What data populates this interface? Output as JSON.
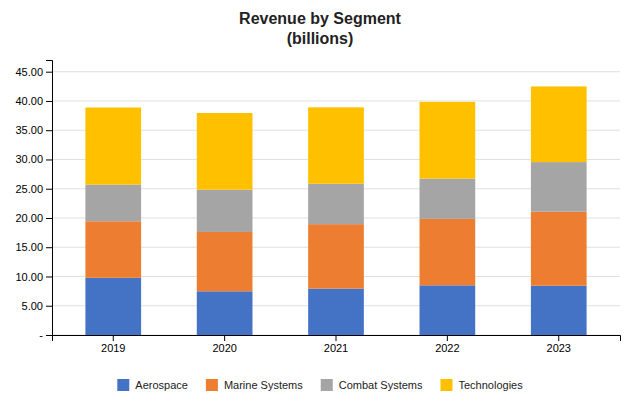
{
  "chart_data": {
    "type": "bar",
    "stacked": true,
    "title": "Revenue by Segment\n(billions)",
    "categories": [
      "2019",
      "2020",
      "2021",
      "2022",
      "2023"
    ],
    "series": [
      {
        "name": "Aerospace",
        "color": "#4472c4",
        "values": [
          9.77,
          7.47,
          7.93,
          8.49,
          8.42
        ]
      },
      {
        "name": "Marine Systems",
        "color": "#ed7d31",
        "values": [
          9.67,
          10.14,
          11.01,
          11.36,
          12.65
        ]
      },
      {
        "name": "Combat Systems",
        "color": "#a5a5a5",
        "values": [
          6.27,
          7.22,
          6.91,
          6.88,
          8.48
        ]
      },
      {
        "name": "Technologies",
        "color": "#ffc000",
        "values": [
          13.17,
          13.11,
          13.06,
          13.12,
          12.93
        ]
      }
    ],
    "ylim": [
      0,
      47
    ],
    "yticks": [
      {
        "value": 0,
        "label": "-"
      },
      {
        "value": 5,
        "label": "5.00"
      },
      {
        "value": 10,
        "label": "10.00"
      },
      {
        "value": 15,
        "label": "15.00"
      },
      {
        "value": 20,
        "label": "20.00"
      },
      {
        "value": 25,
        "label": "25.00"
      },
      {
        "value": 30,
        "label": "30.00"
      },
      {
        "value": 35,
        "label": "35.00"
      },
      {
        "value": 40,
        "label": "40.00"
      },
      {
        "value": 45,
        "label": "45.00"
      }
    ],
    "grid": true,
    "legend": "bottom"
  }
}
